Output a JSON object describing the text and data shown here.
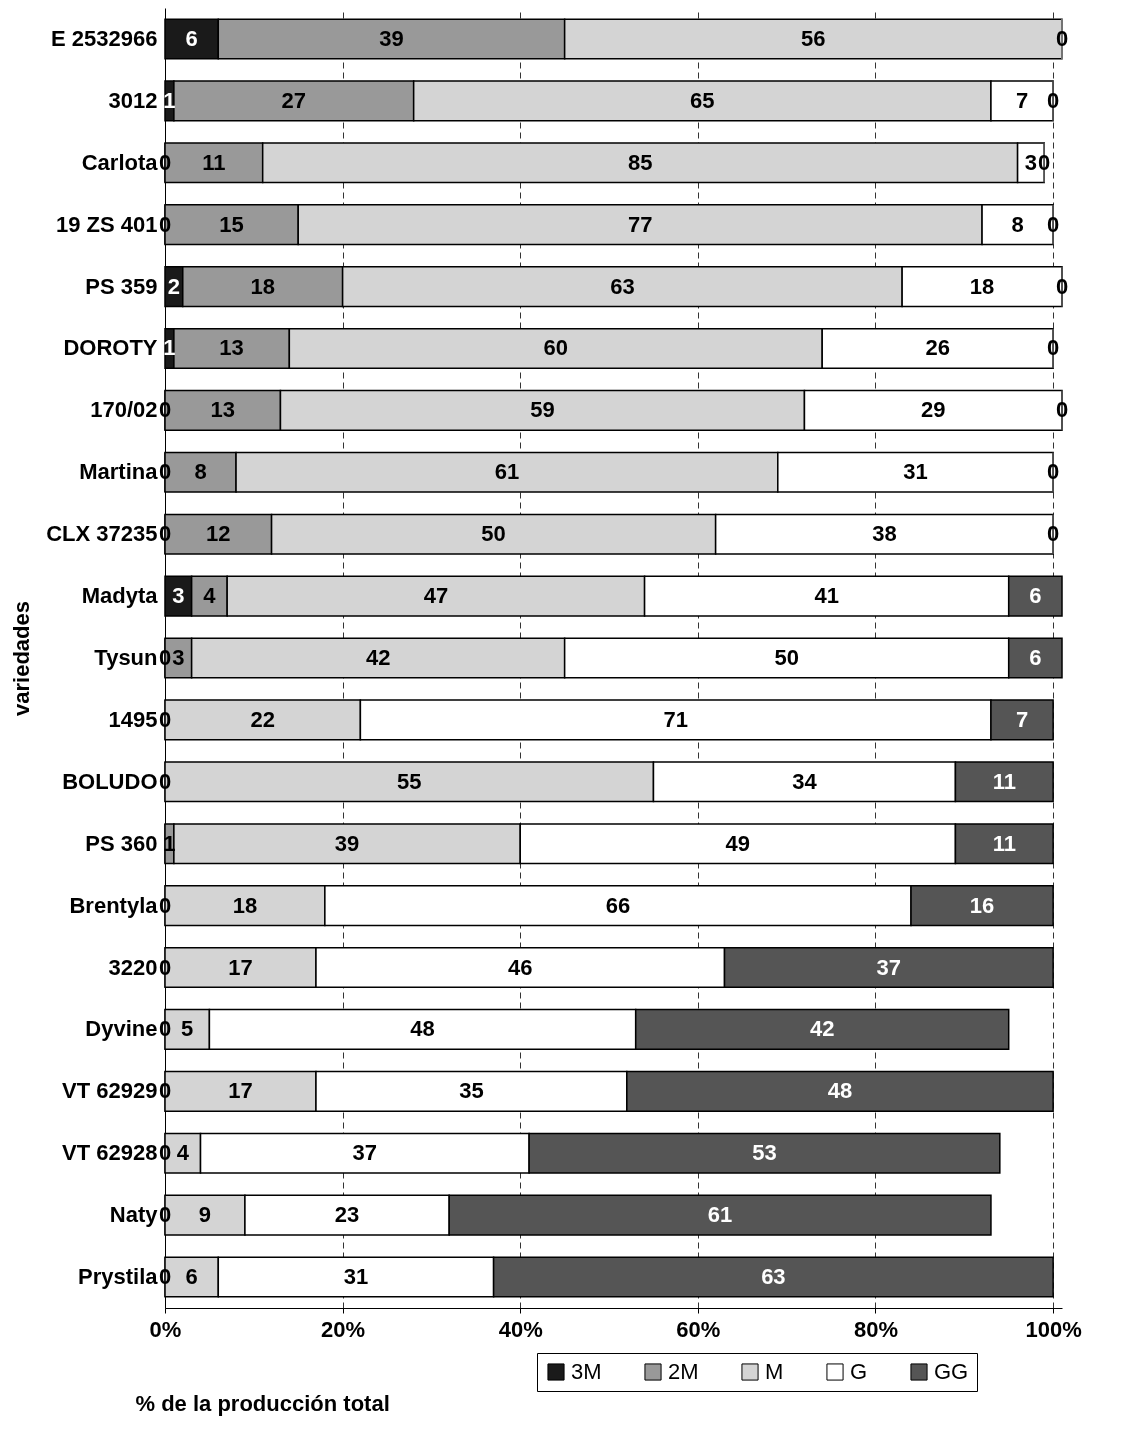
{
  "chart_data": {
    "type": "bar",
    "orientation": "horizontal",
    "stacked": true,
    "xlabel": "% de la producción total",
    "ylabel": "variedades",
    "categories": [
      "E 2532966",
      "3012",
      "Carlota",
      "19 ZS 401",
      "PS 359",
      "DOROTY",
      "170/02",
      "Martina",
      "CLX 37235",
      "Madyta",
      "Tysun",
      "1495",
      "BOLUDO",
      "PS 360",
      "Brentyla",
      "3220",
      "Dyvine",
      "VT 62929",
      "VT 62928",
      "Naty",
      "Prystila"
    ],
    "series": [
      {
        "name": "3M",
        "color": "#1a1a1a",
        "values": [
          6,
          1,
          0,
          0,
          2,
          1,
          0,
          0,
          0,
          3,
          0,
          0,
          0,
          0,
          0,
          0,
          0,
          0,
          0,
          0,
          0
        ],
        "value_labels": [
          "6",
          "1",
          "0",
          "0",
          "2",
          "1",
          "0",
          "0",
          "0",
          "3",
          "0",
          "0",
          "0",
          null,
          "0",
          "0",
          "0",
          "0",
          "0",
          "0",
          "0"
        ]
      },
      {
        "name": "2M",
        "color": "#999999",
        "values": [
          39,
          27,
          11,
          15,
          18,
          13,
          13,
          8,
          12,
          4,
          3,
          0,
          0,
          1,
          0,
          0,
          0,
          0,
          0,
          0,
          0
        ],
        "value_labels": [
          "39",
          "27",
          "11",
          "15",
          "18",
          "13",
          "13",
          "8",
          "12",
          "4",
          "3",
          null,
          null,
          "1",
          null,
          null,
          null,
          null,
          null,
          null,
          null
        ]
      },
      {
        "name": "M",
        "color": "#d4d4d4",
        "values": [
          56,
          65,
          85,
          77,
          63,
          60,
          59,
          61,
          50,
          47,
          42,
          22,
          55,
          39,
          18,
          17,
          5,
          17,
          4,
          9,
          6
        ],
        "value_labels": [
          "56",
          "65",
          "85",
          "77",
          "63",
          "60",
          "59",
          "61",
          "50",
          "47",
          "42",
          "22",
          "55",
          "39",
          "18",
          "17",
          "5",
          "17",
          "4",
          "9",
          "6"
        ]
      },
      {
        "name": "G",
        "color": "#ffffff",
        "values": [
          0,
          7,
          3,
          8,
          18,
          26,
          29,
          31,
          38,
          41,
          50,
          71,
          34,
          49,
          66,
          46,
          48,
          35,
          37,
          23,
          31
        ],
        "value_labels": [
          "0",
          "7",
          "3",
          "8",
          "18",
          "26",
          "29",
          "31",
          "38",
          "41",
          "50",
          "71",
          "34",
          "49",
          "66",
          "46",
          "48",
          "35",
          "37",
          "23",
          "31"
        ]
      },
      {
        "name": "GG",
        "color": "#555555",
        "values": [
          0,
          0,
          0,
          0,
          0,
          0,
          0,
          0,
          0,
          6,
          6,
          7,
          11,
          11,
          16,
          37,
          42,
          48,
          53,
          61,
          63
        ],
        "value_labels": [
          null,
          "0",
          "0",
          "0",
          "0",
          "0",
          "0",
          "0",
          "0",
          "6",
          "6",
          "7",
          "11",
          "11",
          "16",
          "37",
          "42",
          "48",
          "53",
          "61",
          "63"
        ]
      }
    ],
    "xlim": [
      0,
      101
    ],
    "xticks": [
      {
        "value": 0,
        "label": "0%"
      },
      {
        "value": 20,
        "label": "20%"
      },
      {
        "value": 40,
        "label": "40%"
      },
      {
        "value": 60,
        "label": "60%"
      },
      {
        "value": 80,
        "label": "80%"
      },
      {
        "value": 100,
        "label": "100%"
      }
    ],
    "grid": "x",
    "legend": "bottom right"
  }
}
